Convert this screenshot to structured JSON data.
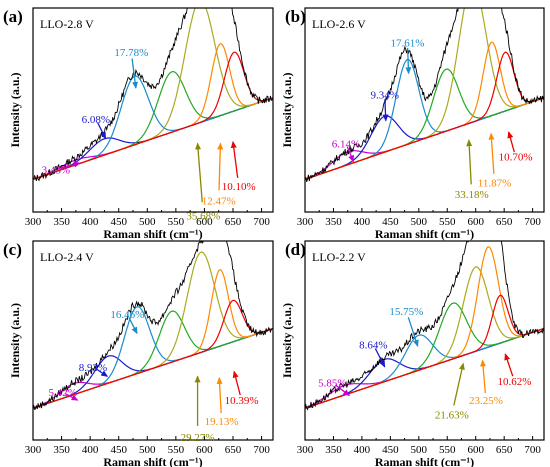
{
  "chart_data": [
    {
      "type": "line",
      "panel": "(a)",
      "title": "LLO-2.8 V",
      "xlabel": "Raman shift (cm⁻¹)",
      "ylabel": "Intensity (a.u.)",
      "xlim": [
        300,
        720
      ],
      "xticks": [
        300,
        350,
        400,
        450,
        500,
        550,
        600,
        650,
        700
      ],
      "peaks": [
        {
          "center": 375,
          "width": 26,
          "height": 0.03,
          "color": "#cc00cc"
        },
        {
          "center": 425,
          "width": 26,
          "height": 0.1,
          "color": "#1a1acc"
        },
        {
          "center": 478,
          "width": 24,
          "height": 0.42,
          "color": "#1a8ccc"
        },
        {
          "center": 543,
          "width": 24,
          "height": 0.37,
          "color": "#22aa22"
        },
        {
          "center": 592,
          "width": 26,
          "height": 0.75,
          "color": "#aaaa22"
        },
        {
          "center": 628,
          "width": 16,
          "height": 0.44,
          "color": "#ff8800"
        },
        {
          "center": 652,
          "width": 17,
          "height": 0.36,
          "color": "#ee0000"
        }
      ],
      "annotations": [
        {
          "text": "3.43%",
          "color": "#cc00cc",
          "ann_x": 340,
          "ann_y": 0.14,
          "arrow_x": 382,
          "arrow_y": 0.18
        },
        {
          "text": "6.08%",
          "color": "#1a1acc",
          "ann_x": 410,
          "ann_y": 0.45,
          "arrow_x": 427,
          "arrow_y": 0.33
        },
        {
          "text": "17.78%",
          "color": "#1a8ccc",
          "ann_x": 472,
          "ann_y": 0.86,
          "arrow_x": 480,
          "arrow_y": 0.64
        },
        {
          "text": "35.68%",
          "color": "#888800",
          "ann_x": 598,
          "ann_y": -0.14,
          "arrow_x": 588,
          "arrow_y": 0.3
        },
        {
          "text": "12.47%",
          "color": "#ff8800",
          "ann_x": 625,
          "ann_y": -0.05,
          "arrow_x": 628,
          "arrow_y": 0.3
        },
        {
          "text": "10.10%",
          "color": "#ee0000",
          "ann_x": 660,
          "ann_y": 0.04,
          "arrow_x": 650,
          "arrow_y": 0.31
        }
      ]
    },
    {
      "type": "line",
      "panel": "(b)",
      "title": "LLO-2.6 V",
      "xlabel": "Raman shift (cm⁻¹)",
      "ylabel": "Intensity (a.u.)",
      "xlim": [
        300,
        720
      ],
      "xticks": [
        300,
        350,
        400,
        450,
        500,
        550,
        600,
        650,
        700
      ],
      "peaks": [
        {
          "center": 375,
          "width": 26,
          "height": 0.08,
          "color": "#cc00cc"
        },
        {
          "center": 440,
          "width": 24,
          "height": 0.22,
          "color": "#1a1acc"
        },
        {
          "center": 480,
          "width": 20,
          "height": 0.52,
          "color": "#1a8ccc"
        },
        {
          "center": 548,
          "width": 22,
          "height": 0.38,
          "color": "#22aa22"
        },
        {
          "center": 594,
          "width": 24,
          "height": 0.85,
          "color": "#aaaa22"
        },
        {
          "center": 628,
          "width": 15,
          "height": 0.45,
          "color": "#ff8800"
        },
        {
          "center": 652,
          "width": 15,
          "height": 0.36,
          "color": "#ee0000"
        }
      ],
      "annotations": [
        {
          "text": "6.14%",
          "color": "#cc00cc",
          "ann_x": 372,
          "ann_y": 0.3,
          "arrow_x": 385,
          "arrow_y": 0.19
        },
        {
          "text": "9.34%",
          "color": "#1a1acc",
          "ann_x": 440,
          "ann_y": 0.6,
          "arrow_x": 442,
          "arrow_y": 0.44
        },
        {
          "text": "17.61%",
          "color": "#1a8ccc",
          "ann_x": 480,
          "ann_y": 0.92,
          "arrow_x": 482,
          "arrow_y": 0.73
        },
        {
          "text": "33.18%",
          "color": "#888800",
          "ann_x": 593,
          "ann_y": -0.01,
          "arrow_x": 588,
          "arrow_y": 0.32
        },
        {
          "text": "11.87%",
          "color": "#ff8800",
          "ann_x": 633,
          "ann_y": 0.06,
          "arrow_x": 627,
          "arrow_y": 0.36
        },
        {
          "text": "10.70%",
          "color": "#ee0000",
          "ann_x": 670,
          "ann_y": 0.22,
          "arrow_x": 658,
          "arrow_y": 0.37
        }
      ]
    },
    {
      "type": "line",
      "panel": "(c)",
      "title": "LLO-2.4 V",
      "xlabel": "Raman shift (cm⁻¹)",
      "ylabel": "Intensity (a.u.)",
      "xlim": [
        300,
        720
      ],
      "xticks": [
        300,
        350,
        400,
        450,
        500,
        550,
        600,
        650,
        700
      ],
      "peaks": [
        {
          "center": 372,
          "width": 24,
          "height": 0.07,
          "color": "#cc00cc"
        },
        {
          "center": 432,
          "width": 24,
          "height": 0.17,
          "color": "#1a1acc"
        },
        {
          "center": 482,
          "width": 22,
          "height": 0.42,
          "color": "#1a8ccc"
        },
        {
          "center": 543,
          "width": 22,
          "height": 0.32,
          "color": "#22aa22"
        },
        {
          "center": 594,
          "width": 24,
          "height": 0.63,
          "color": "#aaaa22"
        },
        {
          "center": 627,
          "width": 15,
          "height": 0.48,
          "color": "#ff8800"
        },
        {
          "center": 650,
          "width": 16,
          "height": 0.26,
          "color": "#ee0000"
        }
      ],
      "annotations": [
        {
          "text": "5.42%",
          "color": "#cc00cc",
          "ann_x": 352,
          "ann_y": 0.18,
          "arrow_x": 378,
          "arrow_y": 0.13
        },
        {
          "text": "8.93%",
          "color": "#1a1acc",
          "ann_x": 405,
          "ann_y": 0.34,
          "arrow_x": 430,
          "arrow_y": 0.28
        },
        {
          "text": "16.46%",
          "color": "#1a8ccc",
          "ann_x": 465,
          "ann_y": 0.67,
          "arrow_x": 482,
          "arrow_y": 0.55
        },
        {
          "text": "29.27%",
          "color": "#888800",
          "ann_x": 588,
          "ann_y": -0.1,
          "arrow_x": 588,
          "arrow_y": 0.28
        },
        {
          "text": "19.13%",
          "color": "#ff8800",
          "ann_x": 630,
          "ann_y": 0.0,
          "arrow_x": 626,
          "arrow_y": 0.27
        },
        {
          "text": "10.39%",
          "color": "#ee0000",
          "ann_x": 665,
          "ann_y": 0.13,
          "arrow_x": 652,
          "arrow_y": 0.31
        }
      ]
    },
    {
      "type": "line",
      "panel": "(d)",
      "title": "LLO-2.2 V",
      "xlabel": "Raman shift (cm⁻¹)",
      "ylabel": "Intensity (a.u.)",
      "xlim": [
        300,
        720
      ],
      "xticks": [
        300,
        350,
        400,
        450,
        500,
        550,
        600,
        650,
        700
      ],
      "peaks": [
        {
          "center": 370,
          "width": 28,
          "height": 0.06,
          "color": "#cc00cc"
        },
        {
          "center": 440,
          "width": 26,
          "height": 0.14,
          "color": "#1a1acc"
        },
        {
          "center": 500,
          "width": 24,
          "height": 0.22,
          "color": "#1a8ccc"
        },
        {
          "center": 560,
          "width": 24,
          "height": 0.35,
          "color": "#22aa22"
        },
        {
          "center": 600,
          "width": 22,
          "height": 0.53,
          "color": "#aaaa22"
        },
        {
          "center": 622,
          "width": 18,
          "height": 0.63,
          "color": "#ff8800"
        },
        {
          "center": 643,
          "width": 14,
          "height": 0.3,
          "color": "#ee0000"
        }
      ],
      "annotations": [
        {
          "text": "5.85%",
          "color": "#cc00cc",
          "ann_x": 348,
          "ann_y": 0.24,
          "arrow_x": 378,
          "arrow_y": 0.16
        },
        {
          "text": "8.64%",
          "color": "#1a1acc",
          "ann_x": 420,
          "ann_y": 0.48,
          "arrow_x": 440,
          "arrow_y": 0.34
        },
        {
          "text": "15.75%",
          "color": "#1a8ccc",
          "ann_x": 478,
          "ann_y": 0.69,
          "arrow_x": 498,
          "arrow_y": 0.47
        },
        {
          "text": "21.63%",
          "color": "#888800",
          "ann_x": 558,
          "ann_y": 0.04,
          "arrow_x": 578,
          "arrow_y": 0.36
        },
        {
          "text": "23.25%",
          "color": "#ff8800",
          "ann_x": 618,
          "ann_y": 0.13,
          "arrow_x": 612,
          "arrow_y": 0.38
        },
        {
          "text": "10.62%",
          "color": "#ee0000",
          "ann_x": 668,
          "ann_y": 0.25,
          "arrow_x": 652,
          "arrow_y": 0.42
        }
      ]
    }
  ]
}
